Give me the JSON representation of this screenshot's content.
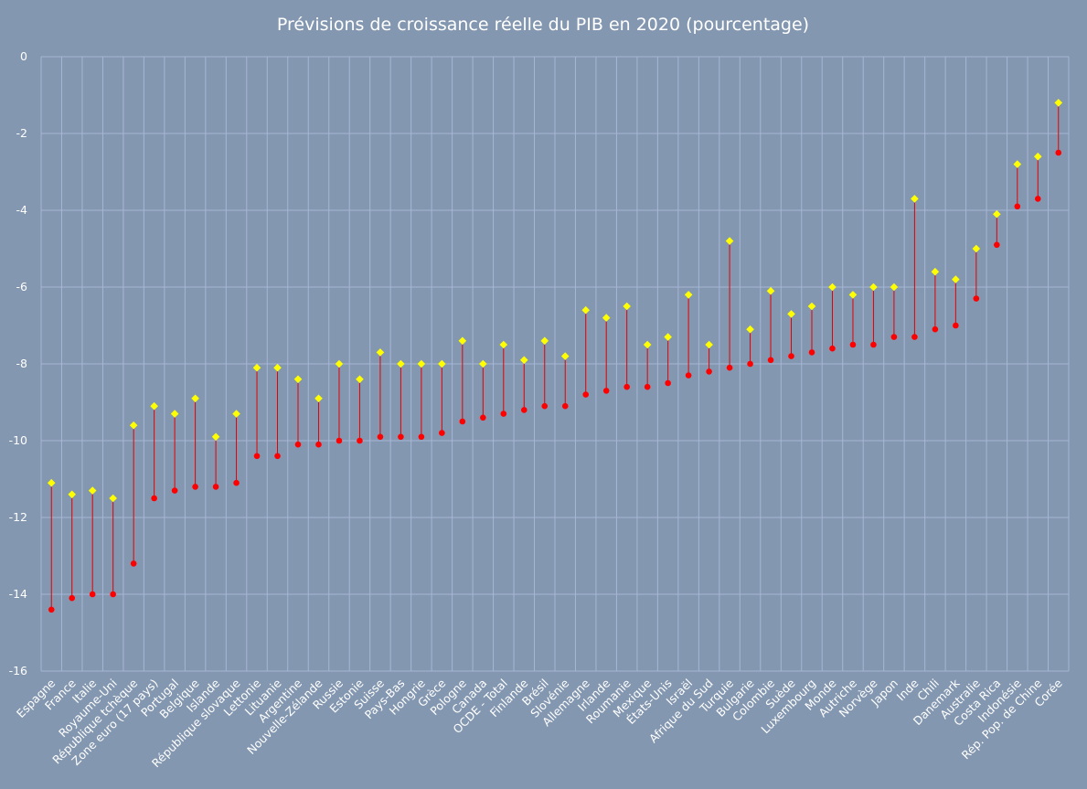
{
  "chart_data": {
    "type": "scatter",
    "title": "Prévisions de croissance réelle du PIB en 2020 (pourcentage)",
    "xlabel": "",
    "ylabel": "",
    "ylim": [
      -16,
      0
    ],
    "yticks": [
      0,
      -2,
      -4,
      -6,
      -8,
      -10,
      -12,
      -14,
      -16
    ],
    "grid": true,
    "legend": "none",
    "categories": [
      "Espagne",
      "France",
      "Italie",
      "Royaume-Uni",
      "République tchèque",
      "Zone euro (17 pays)",
      "Portugal",
      "Belgique",
      "Islande",
      "République slovaque",
      "Lettonie",
      "Lituanie",
      "Argentine",
      "Nouvelle-Zélande",
      "Russie",
      "Estonie",
      "Suisse",
      "Pays-Bas",
      "Hongrie",
      "Grèce",
      "Pologne",
      "Canada",
      "OCDE - Total",
      "Finlande",
      "Brésil",
      "Slovénie",
      "Allemagne",
      "Irlande",
      "Roumanie",
      "Mexique",
      "États-Unis",
      "Israël",
      "Afrique du Sud",
      "Turquie",
      "Bulgarie",
      "Colombie",
      "Suède",
      "Luxembourg",
      "Monde",
      "Autriche",
      "Norvège",
      "Japon",
      "Inde",
      "Chili",
      "Danemark",
      "Australie",
      "Costa Rica",
      "Indonésie",
      "Rép. Pop. de Chine",
      "Corée"
    ],
    "series": [
      {
        "color": "#ff0000",
        "marker": "circle",
        "values": [
          -14.4,
          -14.1,
          -14.0,
          -14.0,
          -13.2,
          -11.5,
          -11.3,
          -11.2,
          -11.2,
          -11.1,
          -10.4,
          -10.4,
          -10.1,
          -10.1,
          -10.0,
          -10.0,
          -9.9,
          -9.9,
          -9.9,
          -9.8,
          -9.5,
          -9.4,
          -9.3,
          -9.2,
          -9.1,
          -9.1,
          -8.8,
          -8.7,
          -8.6,
          -8.6,
          -8.5,
          -8.3,
          -8.2,
          -8.1,
          -8.0,
          -7.9,
          -7.8,
          -7.7,
          -7.6,
          -7.5,
          -7.5,
          -7.3,
          -7.3,
          -7.1,
          -7.0,
          -6.3,
          -4.9,
          -3.9,
          -3.7,
          -2.5
        ]
      },
      {
        "color": "#ffff00",
        "marker": "diamond",
        "values": [
          -11.1,
          -11.4,
          -11.3,
          -11.5,
          -9.6,
          -9.1,
          -9.3,
          -8.9,
          -9.9,
          -9.3,
          -8.1,
          -8.1,
          -8.4,
          -8.9,
          -8.0,
          -8.4,
          -7.7,
          -8.0,
          -8.0,
          -8.0,
          -7.4,
          -8.0,
          -7.5,
          -7.9,
          -7.4,
          -7.8,
          -6.6,
          -6.8,
          -6.5,
          -7.5,
          -7.3,
          -6.2,
          -7.5,
          -4.8,
          -7.1,
          -6.1,
          -6.7,
          -6.5,
          -6.0,
          -6.2,
          -6.0,
          -6.0,
          -3.7,
          -5.6,
          -5.8,
          -5.0,
          -4.1,
          -2.8,
          -2.6,
          -1.2
        ]
      }
    ]
  }
}
